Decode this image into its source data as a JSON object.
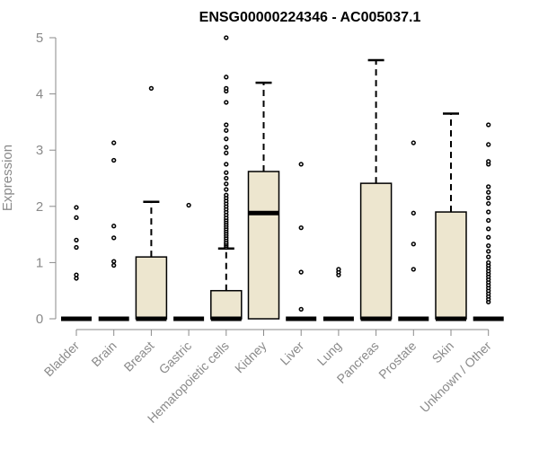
{
  "chart_data": {
    "type": "boxplot",
    "title": "ENSG00000224346 - AC005037.1",
    "ylabel": "Expression",
    "xlabel": "",
    "ylim": [
      0,
      5
    ],
    "yticks": [
      0,
      1,
      2,
      3,
      4,
      5
    ],
    "grid": false,
    "colors": {
      "box_fill": "#ede6cf",
      "stroke": "#000000",
      "axis": "#8a8a8a"
    },
    "categories": [
      "Bladder",
      "Brain",
      "Breast",
      "Gastric",
      "Hematopoietic cells",
      "Kidney",
      "Liver",
      "Lung",
      "Pancreas",
      "Prostate",
      "Skin",
      "Unknown / Other"
    ],
    "boxes": [
      {
        "q1": 0,
        "median": 0,
        "q3": 0,
        "whisker_low": 0,
        "whisker_high": 0,
        "outliers": [
          0.72,
          0.78,
          1.27,
          1.4,
          1.8,
          1.98
        ]
      },
      {
        "q1": 0,
        "median": 0,
        "q3": 0,
        "whisker_low": 0,
        "whisker_high": 0,
        "outliers": [
          0.95,
          1.02,
          1.44,
          1.65,
          2.82,
          3.13
        ]
      },
      {
        "q1": 0,
        "median": 0,
        "q3": 1.1,
        "whisker_low": 0,
        "whisker_high": 2.08,
        "outliers": [
          4.1
        ]
      },
      {
        "q1": 0,
        "median": 0,
        "q3": 0,
        "whisker_low": 0,
        "whisker_high": 0,
        "outliers": [
          2.02
        ]
      },
      {
        "q1": 0,
        "median": 0,
        "q3": 0.5,
        "whisker_low": 0,
        "whisker_high": 1.25,
        "outliers": [
          1.27,
          1.3,
          1.33,
          1.36,
          1.4,
          1.44,
          1.48,
          1.52,
          1.56,
          1.6,
          1.64,
          1.68,
          1.72,
          1.76,
          1.8,
          1.85,
          1.9,
          1.95,
          2.0,
          2.05,
          2.1,
          2.15,
          2.2,
          2.3,
          2.4,
          2.5,
          2.6,
          2.75,
          2.95,
          3.05,
          3.2,
          3.35,
          3.45,
          3.85,
          4.05,
          4.1,
          4.3,
          5.0
        ]
      },
      {
        "q1": 0,
        "median": 1.88,
        "q3": 2.62,
        "whisker_low": 0,
        "whisker_high": 4.2,
        "outliers": []
      },
      {
        "q1": 0,
        "median": 0,
        "q3": 0,
        "whisker_low": 0,
        "whisker_high": 0,
        "outliers": [
          0.17,
          0.83,
          1.62,
          2.75
        ]
      },
      {
        "q1": 0,
        "median": 0,
        "q3": 0,
        "whisker_low": 0,
        "whisker_high": 0,
        "outliers": [
          0.78,
          0.83,
          0.88
        ]
      },
      {
        "q1": 0,
        "median": 0,
        "q3": 2.41,
        "whisker_low": 0,
        "whisker_high": 4.6,
        "outliers": []
      },
      {
        "q1": 0,
        "median": 0,
        "q3": 0,
        "whisker_low": 0,
        "whisker_high": 0,
        "outliers": [
          0.88,
          1.33,
          1.88,
          3.13
        ]
      },
      {
        "q1": 0,
        "median": 0,
        "q3": 1.9,
        "whisker_low": 0,
        "whisker_high": 3.65,
        "outliers": []
      },
      {
        "q1": 0,
        "median": 0,
        "q3": 0,
        "whisker_low": 0,
        "whisker_high": 0,
        "outliers": [
          0.3,
          0.35,
          0.4,
          0.45,
          0.5,
          0.55,
          0.6,
          0.65,
          0.7,
          0.75,
          0.8,
          0.85,
          0.9,
          0.95,
          1.0,
          1.1,
          1.2,
          1.3,
          1.45,
          1.6,
          1.75,
          1.9,
          2.05,
          2.15,
          2.25,
          2.35,
          2.75,
          2.8,
          3.1,
          3.45
        ]
      }
    ]
  }
}
